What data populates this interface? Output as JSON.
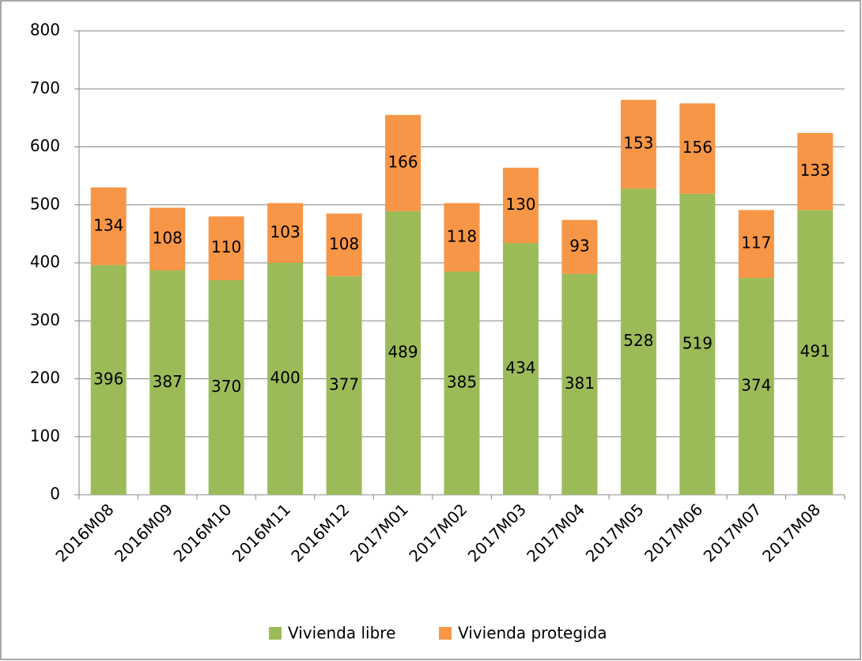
{
  "chart_data": {
    "type": "stacked-bar",
    "categories": [
      "2016M08",
      "2016M09",
      "2016M10",
      "2016M11",
      "2016M12",
      "2017M01",
      "2017M02",
      "2017M03",
      "2017M04",
      "2017M05",
      "2017M06",
      "2017M07",
      "2017M08"
    ],
    "series": [
      {
        "name": "Vivienda libre",
        "color": "#9bbb59",
        "values": [
          396,
          387,
          370,
          400,
          377,
          489,
          385,
          434,
          381,
          528,
          519,
          374,
          491
        ]
      },
      {
        "name": "Vivienda protegida",
        "color": "#f79646",
        "values": [
          134,
          108,
          110,
          103,
          108,
          166,
          118,
          130,
          93,
          153,
          156,
          117,
          133
        ]
      }
    ],
    "ylim": [
      0,
      800
    ],
    "yticks": [
      0,
      100,
      200,
      300,
      400,
      500,
      600,
      700,
      800
    ],
    "grid": true,
    "legend": "bottom"
  }
}
